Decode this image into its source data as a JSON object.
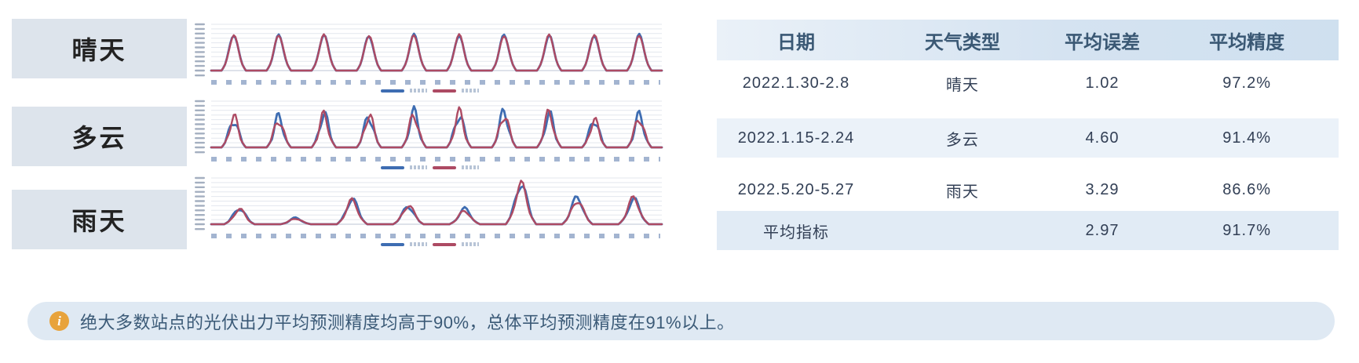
{
  "weather_labels": {
    "sunny": "晴天",
    "cloudy": "多云",
    "rainy": "雨天"
  },
  "table": {
    "headers": [
      "日期",
      "天气类型",
      "平均误差",
      "平均精度"
    ],
    "rows": [
      {
        "date": "2022.1.30-2.8",
        "weather": "晴天",
        "avg_error": "1.02",
        "avg_accuracy": "97.2%"
      },
      {
        "date": "2022.1.15-2.24",
        "weather": "多云",
        "avg_error": "4.60",
        "avg_accuracy": "91.4%"
      },
      {
        "date": "2022.5.20-5.27",
        "weather": "雨天",
        "avg_error": "3.29",
        "avg_accuracy": "86.6%"
      },
      {
        "date": "平均指标",
        "weather": "",
        "avg_error": "2.97",
        "avg_accuracy": "91.7%"
      }
    ]
  },
  "note": {
    "icon": "info-icon",
    "icon_glyph": "i",
    "icon_color": "#e8a33c",
    "text": "绝大多数站点的光伏出力平均预测精度均高于90%，总体平均预测精度在91%以上。"
  },
  "colors": {
    "series_blue": "#3e6db2",
    "series_red": "#ad4a63",
    "label_box_bg": "#dde4ec",
    "table_header_bg": "#d5e3f1",
    "row_alt_bg": "#ebf2f9",
    "summary_row_bg": "#e1ebf5",
    "banner_bg": "#dfe9f3"
  },
  "chart_data": [
    {
      "type": "line",
      "id": "sunny",
      "weather": "晴天",
      "date_range": "2022.1.30-2.8",
      "days": 10,
      "ylim": [
        0,
        1
      ],
      "grid": true,
      "legend_position": "bottom",
      "jag": 0.03,
      "series": [
        {
          "name": "series-blue",
          "color": "#3e6db2",
          "width": 2.8,
          "phase": 0,
          "peaks": [
            0.8,
            0.79,
            0.8,
            0.78,
            0.8,
            0.79,
            0.8,
            0.78,
            0.79,
            0.8
          ]
        },
        {
          "name": "series-red",
          "color": "#ad4a63",
          "width": 2.4,
          "phase": 1.6,
          "peaks": [
            0.79,
            0.8,
            0.79,
            0.79,
            0.79,
            0.8,
            0.79,
            0.79,
            0.8,
            0.79
          ]
        }
      ]
    },
    {
      "type": "line",
      "id": "cloudy",
      "weather": "多云",
      "date_range": "2022.1.15-2.24",
      "days": 10,
      "ylim": [
        0,
        1
      ],
      "grid": true,
      "legend_position": "bottom",
      "jag": 0.2,
      "series": [
        {
          "name": "series-blue",
          "color": "#3e6db2",
          "width": 2.8,
          "phase": 0,
          "peaks": [
            0.62,
            0.67,
            0.74,
            0.7,
            0.77,
            0.73,
            0.79,
            0.72,
            0.63,
            0.7
          ]
        },
        {
          "name": "series-red",
          "color": "#ad4a63",
          "width": 2.4,
          "phase": 2.1,
          "peaks": [
            0.66,
            0.63,
            0.7,
            0.72,
            0.73,
            0.76,
            0.74,
            0.76,
            0.6,
            0.67
          ]
        }
      ]
    },
    {
      "type": "line",
      "id": "rainy",
      "weather": "雨天",
      "date_range": "2022.5.20-5.27",
      "days": 8,
      "ylim": [
        0,
        1
      ],
      "grid": true,
      "legend_position": "bottom",
      "jag": 0.13,
      "series": [
        {
          "name": "series-blue",
          "color": "#3e6db2",
          "width": 2.8,
          "phase": 0,
          "peaks": [
            0.36,
            0.14,
            0.56,
            0.4,
            0.34,
            0.92,
            0.6,
            0.55
          ]
        },
        {
          "name": "series-red",
          "color": "#ad4a63",
          "width": 2.4,
          "phase": 1.9,
          "peaks": [
            0.33,
            0.13,
            0.52,
            0.42,
            0.3,
            0.88,
            0.54,
            0.58
          ]
        }
      ]
    }
  ]
}
